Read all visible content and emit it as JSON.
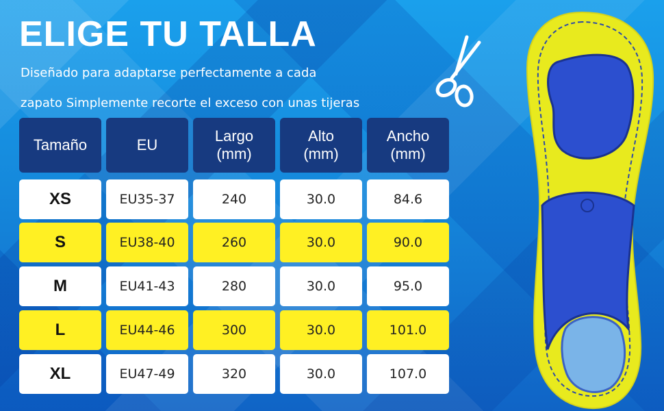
{
  "headline": "ELIGE TU TALLA",
  "subtitle": [
    "Diseñado para adaptarse perfectamente a cada",
    "zapato Simplemente recorte el exceso con unas tijeras"
  ],
  "table": {
    "headers": [
      [
        "Tamaño"
      ],
      [
        "EU"
      ],
      [
        "Largo",
        "(mm)"
      ],
      [
        "Alto",
        "(mm)"
      ],
      [
        "Ancho",
        "(mm)"
      ]
    ],
    "rows": [
      {
        "cells": [
          "XS",
          "EU35-37",
          "240",
          "30.0",
          "84.6"
        ],
        "highlight": false
      },
      {
        "cells": [
          "S",
          "EU38-40",
          "260",
          "30.0",
          "90.0"
        ],
        "highlight": true
      },
      {
        "cells": [
          "M",
          "EU41-43",
          "280",
          "30.0",
          "95.0"
        ],
        "highlight": false
      },
      {
        "cells": [
          "L",
          "EU44-46",
          "300",
          "30.0",
          "101.0"
        ],
        "highlight": true
      },
      {
        "cells": [
          "XL",
          "EU47-49",
          "320",
          "30.0",
          "107.0"
        ],
        "highlight": false
      }
    ]
  },
  "icons": {
    "scissors": "scissors-icon",
    "product": "insole-product-image"
  },
  "colors": {
    "header_bg": "#173a80",
    "highlight": "#fff023",
    "cell_bg": "#ffffff",
    "insole_yellow": "#e8ea1e",
    "insole_blue": "#2c4fcf"
  }
}
